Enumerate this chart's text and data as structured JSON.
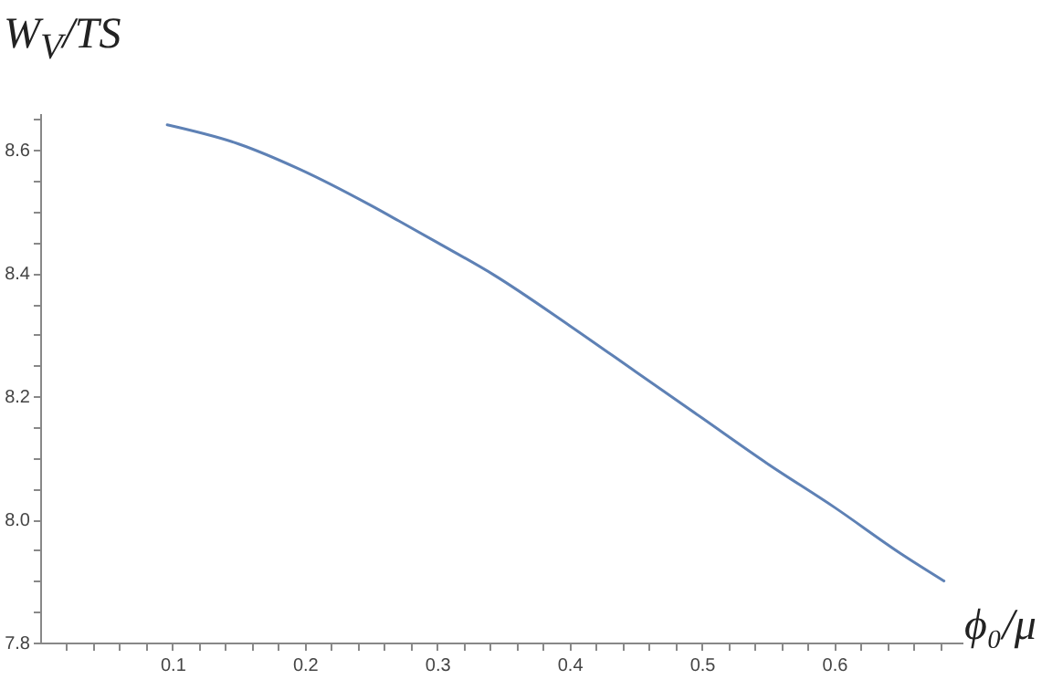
{
  "chart_data": {
    "type": "line",
    "xlabel": "ϕ₀/μ",
    "ylabel": "W$_{V}$/TS",
    "x": [
      0.096,
      0.15,
      0.196,
      0.25,
      0.271,
      0.3,
      0.343,
      0.4,
      0.45,
      0.5,
      0.55,
      0.6,
      0.65,
      0.683
    ],
    "series": [
      {
        "color": "#5e81b5",
        "values": [
          8.641,
          8.61,
          8.569,
          8.51,
          8.485,
          8.45,
          8.397,
          8.315,
          8.24,
          8.165,
          8.09,
          8.02,
          7.945,
          7.9
        ]
      }
    ],
    "xlim": [
      0,
      0.697
    ],
    "ylim": [
      7.8,
      8.66
    ],
    "xticks": [
      {
        "value": 0.02,
        "label": null
      },
      {
        "value": 0.04,
        "label": null
      },
      {
        "value": 0.06,
        "label": null
      },
      {
        "value": 0.08,
        "label": null
      },
      0.1,
      {
        "value": 0.12,
        "label": null
      },
      {
        "value": 0.14,
        "label": null
      },
      {
        "value": 0.16,
        "label": null
      },
      {
        "value": 0.18,
        "label": null
      },
      0.2,
      {
        "value": 0.22,
        "label": null
      },
      {
        "value": 0.24,
        "label": null
      },
      {
        "value": 0.26,
        "label": null
      },
      {
        "value": 0.28,
        "label": null
      },
      0.3,
      {
        "value": 0.32,
        "label": null
      },
      {
        "value": 0.34,
        "label": null
      },
      {
        "value": 0.36,
        "label": null
      },
      {
        "value": 0.38,
        "label": null
      },
      0.4,
      {
        "value": 0.42,
        "label": null
      },
      {
        "value": 0.44,
        "label": null
      },
      {
        "value": 0.46,
        "label": null
      },
      {
        "value": 0.48,
        "label": null
      },
      0.5,
      {
        "value": 0.52,
        "label": null
      },
      {
        "value": 0.54,
        "label": null
      },
      {
        "value": 0.56,
        "label": null
      },
      {
        "value": 0.58,
        "label": null
      },
      0.6,
      {
        "value": 0.62,
        "label": null
      },
      {
        "value": 0.64,
        "label": null
      },
      {
        "value": 0.66,
        "label": null
      },
      {
        "value": 0.68,
        "label": null
      }
    ],
    "yticks": [
      {
        "value": 7.8,
        "label": "7.8"
      },
      {
        "value": 7.85,
        "label": null
      },
      {
        "value": 7.9,
        "label": null
      },
      {
        "value": 7.95,
        "label": null
      },
      {
        "value": 8.0,
        "label": "8.0"
      },
      {
        "value": 8.05,
        "label": null
      },
      {
        "value": 8.1,
        "label": null
      },
      {
        "value": 8.15,
        "label": null
      },
      {
        "value": 8.2,
        "label": "8.2"
      },
      {
        "value": 8.25,
        "label": null
      },
      {
        "value": 8.3,
        "label": null
      },
      {
        "value": 8.35,
        "label": null
      },
      {
        "value": 8.4,
        "label": "8.4"
      },
      {
        "value": 8.45,
        "label": null
      },
      {
        "value": 8.5,
        "label": null
      },
      {
        "value": 8.55,
        "label": null
      },
      {
        "value": 8.6,
        "label": "8.6"
      },
      {
        "value": 8.65,
        "label": null
      }
    ],
    "grid": false,
    "marker": "none",
    "line_style": "solid"
  }
}
